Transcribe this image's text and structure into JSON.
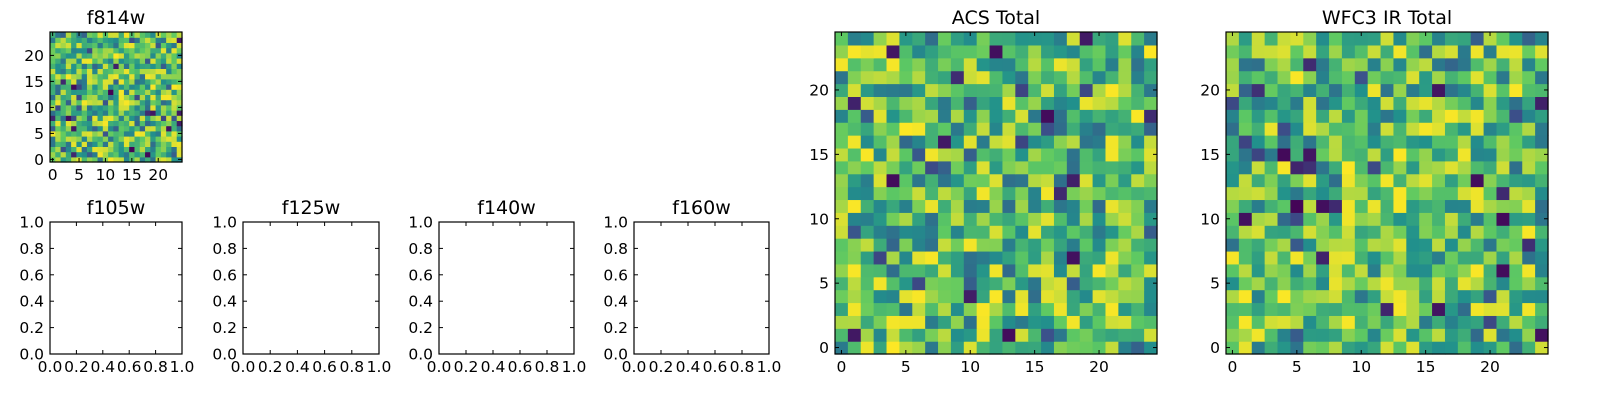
{
  "chart_data": [
    {
      "type": "heatmap",
      "title": "f814w",
      "xlim": [
        -0.5,
        24.5
      ],
      "ylim": [
        -0.5,
        24.5
      ],
      "xticks": [
        0,
        5,
        10,
        15,
        20
      ],
      "yticks": [
        0,
        5,
        10,
        15,
        20
      ],
      "grid_size": [
        25,
        25
      ],
      "colormap": "viridis",
      "seed": 814
    },
    {
      "type": "heatmap",
      "title": "f105w",
      "empty": true,
      "xlim": [
        0,
        1
      ],
      "ylim": [
        0,
        1
      ],
      "xticks": [
        "0.0",
        "0.2",
        "0.4",
        "0.6",
        "0.8",
        "1.0"
      ],
      "yticks": [
        "0.0",
        "0.2",
        "0.4",
        "0.6",
        "0.8",
        "1.0"
      ]
    },
    {
      "type": "heatmap",
      "title": "f125w",
      "empty": true,
      "xlim": [
        0,
        1
      ],
      "ylim": [
        0,
        1
      ],
      "xticks": [
        "0.0",
        "0.2",
        "0.4",
        "0.6",
        "0.8",
        "1.0"
      ],
      "yticks": [
        "0.0",
        "0.2",
        "0.4",
        "0.6",
        "0.8",
        "1.0"
      ]
    },
    {
      "type": "heatmap",
      "title": "f140w",
      "empty": true,
      "xlim": [
        0,
        1
      ],
      "ylim": [
        0,
        1
      ],
      "xticks": [
        "0.0",
        "0.2",
        "0.4",
        "0.6",
        "0.8",
        "1.0"
      ],
      "yticks": [
        "0.0",
        "0.2",
        "0.4",
        "0.6",
        "0.8",
        "1.0"
      ]
    },
    {
      "type": "heatmap",
      "title": "f160w",
      "empty": true,
      "xlim": [
        0,
        1
      ],
      "ylim": [
        0,
        1
      ],
      "xticks": [
        "0.0",
        "0.2",
        "0.4",
        "0.6",
        "0.8",
        "1.0"
      ],
      "yticks": [
        "0.0",
        "0.2",
        "0.4",
        "0.6",
        "0.8",
        "1.0"
      ]
    },
    {
      "type": "heatmap",
      "title": "ACS Total",
      "xlim": [
        -0.5,
        24.5
      ],
      "ylim": [
        -0.5,
        24.5
      ],
      "xticks": [
        0,
        5,
        10,
        15,
        20
      ],
      "yticks": [
        0,
        5,
        10,
        15,
        20
      ],
      "grid_size": [
        25,
        25
      ],
      "colormap": "viridis",
      "seed": 2101
    },
    {
      "type": "heatmap",
      "title": "WFC3 IR Total",
      "xlim": [
        -0.5,
        24.5
      ],
      "ylim": [
        -0.5,
        24.5
      ],
      "xticks": [
        0,
        5,
        10,
        15,
        20
      ],
      "yticks": [
        0,
        5,
        10,
        15,
        20
      ],
      "grid_size": [
        25,
        25
      ],
      "colormap": "viridis",
      "seed": 3303
    }
  ],
  "colors": {
    "axis": "#000000",
    "background": "#ffffff",
    "viridis": [
      "#440154",
      "#3b528b",
      "#21918c",
      "#5ec962",
      "#fde725"
    ]
  }
}
